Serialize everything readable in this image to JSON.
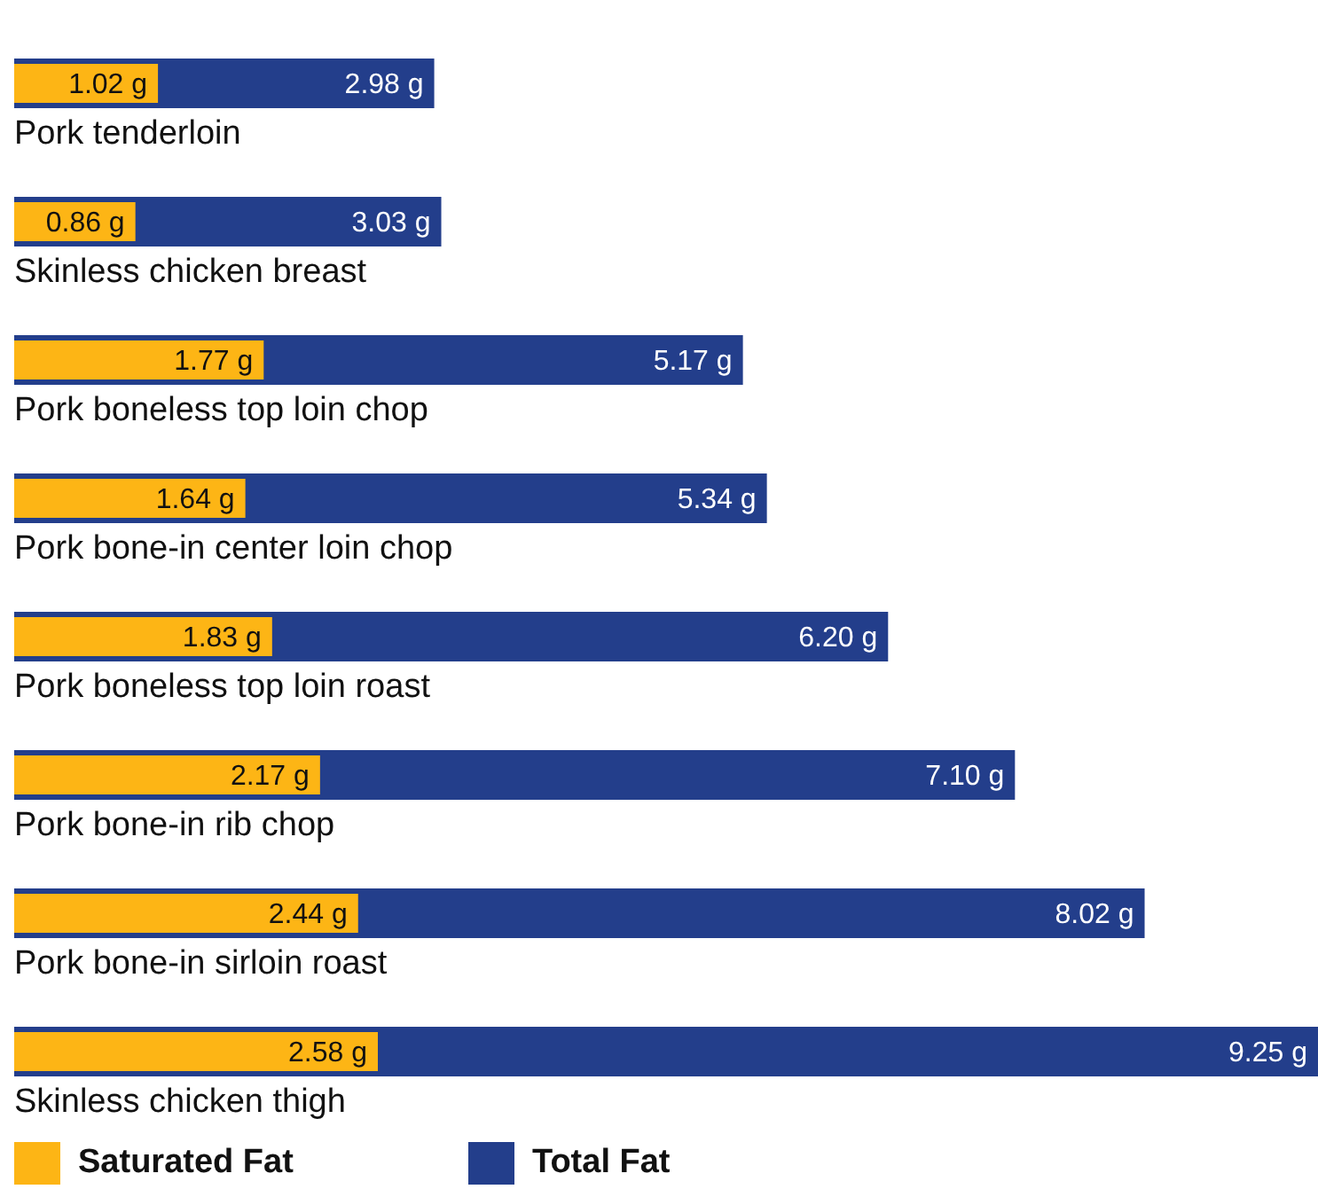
{
  "chart_data": {
    "type": "bar",
    "orientation": "horizontal",
    "categories": [
      "Pork tenderloin",
      "Skinless chicken breast",
      "Pork boneless top loin chop",
      "Pork bone-in center loin chop",
      "Pork boneless top loin roast",
      "Pork bone-in rib chop",
      "Pork bone-in sirloin roast",
      "Skinless chicken thigh"
    ],
    "series": [
      {
        "name": "Saturated Fat",
        "color": "#fdb515",
        "values": [
          1.02,
          0.86,
          1.77,
          1.64,
          1.83,
          2.17,
          2.44,
          2.58
        ],
        "value_labels": [
          "1.02 g",
          "0.86 g",
          "1.77 g",
          "1.64 g",
          "1.83 g",
          "2.17 g",
          "2.44 g",
          "2.58 g"
        ]
      },
      {
        "name": "Total Fat",
        "color": "#233e8b",
        "values": [
          2.98,
          3.03,
          5.17,
          5.34,
          6.2,
          7.1,
          8.02,
          9.25
        ],
        "value_labels": [
          "2.98 g",
          "3.03 g",
          "5.17 g",
          "5.34 g",
          "6.20 g",
          "7.10 g",
          "8.02 g",
          "9.25 g"
        ]
      }
    ],
    "legend": "bottom left"
  }
}
